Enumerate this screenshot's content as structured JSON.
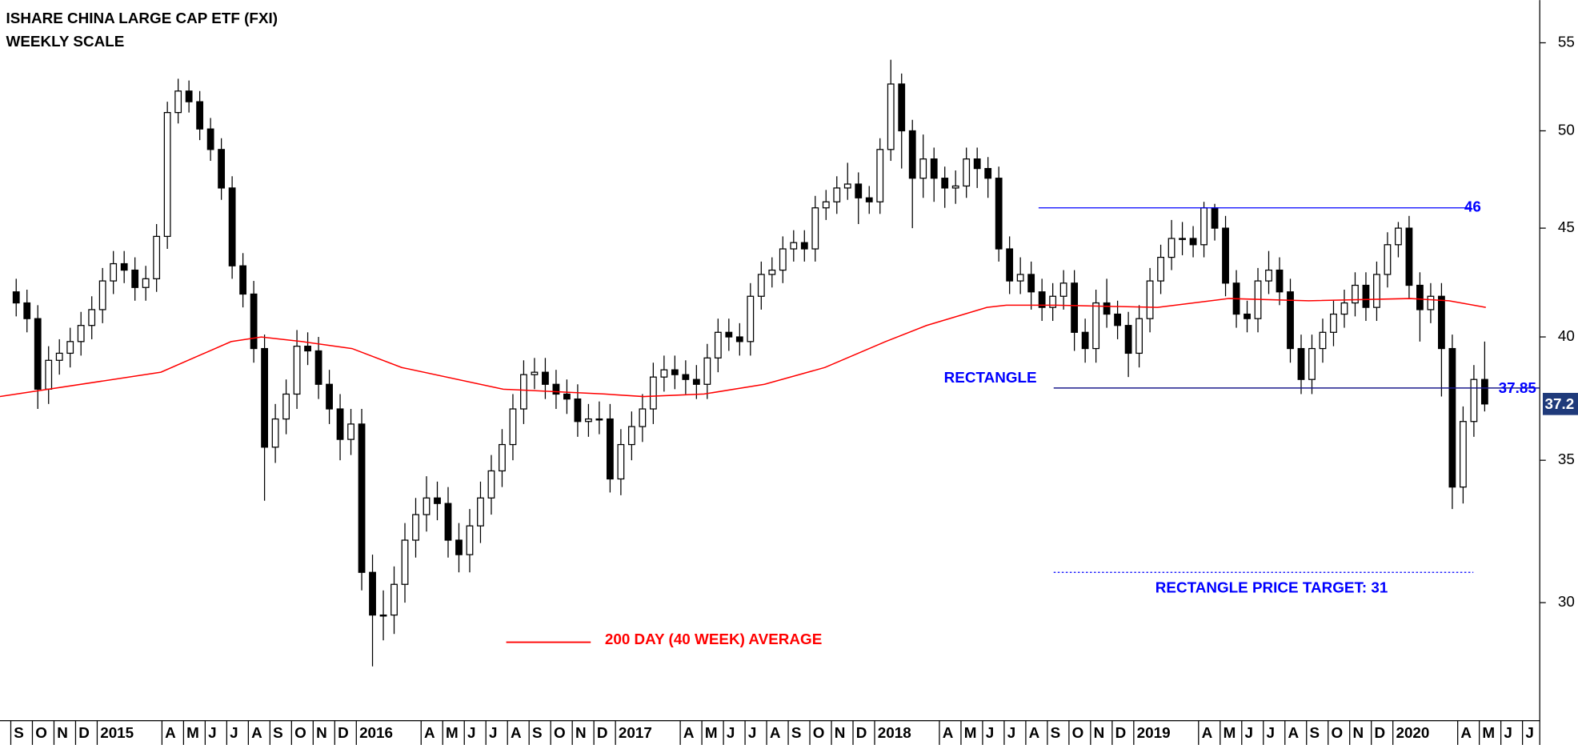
{
  "chart_data": {
    "type": "candlestick",
    "title": "ISHARE CHINA LARGE CAP ETF (FXI)",
    "subtitle": "WEEKLY SCALE",
    "log_scale": true,
    "ylim": [
      26.4,
      57.6
    ],
    "yticks": [
      30,
      35,
      40,
      45,
      50,
      55
    ],
    "xlim": [
      -0.5,
      70.8
    ],
    "xticks": [
      {
        "value": 0,
        "label": "S"
      },
      {
        "value": 1,
        "label": "O"
      },
      {
        "value": 2,
        "label": "N"
      },
      {
        "value": 3,
        "label": "D"
      },
      {
        "value": 4,
        "label": "2015"
      },
      {
        "value": 7,
        "label": "A"
      },
      {
        "value": 8,
        "label": "M"
      },
      {
        "value": 9,
        "label": "J"
      },
      {
        "value": 10,
        "label": "J"
      },
      {
        "value": 11,
        "label": "A"
      },
      {
        "value": 12,
        "label": "S"
      },
      {
        "value": 13,
        "label": "O"
      },
      {
        "value": 14,
        "label": "N"
      },
      {
        "value": 15,
        "label": "D"
      },
      {
        "value": 16,
        "label": "2016"
      },
      {
        "value": 19,
        "label": "A"
      },
      {
        "value": 20,
        "label": "M"
      },
      {
        "value": 21,
        "label": "J"
      },
      {
        "value": 22,
        "label": "J"
      },
      {
        "value": 23,
        "label": "A"
      },
      {
        "value": 24,
        "label": "S"
      },
      {
        "value": 25,
        "label": "O"
      },
      {
        "value": 26,
        "label": "N"
      },
      {
        "value": 27,
        "label": "D"
      },
      {
        "value": 28,
        "label": "2017"
      },
      {
        "value": 31,
        "label": "A"
      },
      {
        "value": 32,
        "label": "M"
      },
      {
        "value": 33,
        "label": "J"
      },
      {
        "value": 34,
        "label": "J"
      },
      {
        "value": 35,
        "label": "A"
      },
      {
        "value": 36,
        "label": "S"
      },
      {
        "value": 37,
        "label": "O"
      },
      {
        "value": 38,
        "label": "N"
      },
      {
        "value": 39,
        "label": "D"
      },
      {
        "value": 40,
        "label": "2018"
      },
      {
        "value": 43,
        "label": "A"
      },
      {
        "value": 44,
        "label": "M"
      },
      {
        "value": 45,
        "label": "J"
      },
      {
        "value": 46,
        "label": "J"
      },
      {
        "value": 47,
        "label": "A"
      },
      {
        "value": 48,
        "label": "S"
      },
      {
        "value": 49,
        "label": "O"
      },
      {
        "value": 50,
        "label": "N"
      },
      {
        "value": 51,
        "label": "D"
      },
      {
        "value": 52,
        "label": "2019"
      },
      {
        "value": 55,
        "label": "A"
      },
      {
        "value": 56,
        "label": "M"
      },
      {
        "value": 57,
        "label": "J"
      },
      {
        "value": 58,
        "label": "J"
      },
      {
        "value": 59,
        "label": "A"
      },
      {
        "value": 60,
        "label": "S"
      },
      {
        "value": 61,
        "label": "O"
      },
      {
        "value": 62,
        "label": "N"
      },
      {
        "value": 63,
        "label": "D"
      },
      {
        "value": 64,
        "label": "2020"
      },
      {
        "value": 67,
        "label": "A"
      },
      {
        "value": 68,
        "label": "M"
      },
      {
        "value": 69,
        "label": "J"
      },
      {
        "value": 70,
        "label": "J"
      }
    ],
    "candles": {
      "up_color": "#ffffff",
      "down_color": "#000000",
      "x": [
        0.25,
        0.75,
        1.25,
        1.75,
        2.25,
        2.75,
        3.25,
        3.75,
        4.25,
        4.75,
        5.25,
        5.75,
        6.25,
        6.75,
        7.25,
        7.75,
        8.25,
        8.75,
        9.25,
        9.75,
        10.25,
        10.75,
        11.25,
        11.75,
        12.25,
        12.75,
        13.25,
        13.75,
        14.25,
        14.75,
        15.25,
        15.75,
        16.25,
        16.75,
        17.25,
        17.75,
        18.25,
        18.75,
        19.25,
        19.75,
        20.25,
        20.75,
        21.25,
        21.75,
        22.25,
        22.75,
        23.25,
        23.75,
        24.25,
        24.75,
        25.25,
        25.75,
        26.25,
        26.75,
        27.25,
        27.75,
        28.25,
        28.75,
        29.25,
        29.75,
        30.25,
        30.75,
        31.25,
        31.75,
        32.25,
        32.75,
        33.25,
        33.75,
        34.25,
        34.75,
        35.25,
        35.75,
        36.25,
        36.75,
        37.25,
        37.75,
        38.25,
        38.75,
        39.25,
        39.75,
        40.25,
        40.75,
        41.25,
        41.75,
        42.25,
        42.75,
        43.25,
        43.75,
        44.25,
        44.75,
        45.25,
        45.75,
        46.25,
        46.75,
        47.25,
        47.75,
        48.25,
        48.75,
        49.25,
        49.75,
        50.25,
        50.75,
        51.25,
        51.75,
        52.25,
        52.75,
        53.25,
        53.75,
        54.25,
        54.75,
        55.25,
        55.75,
        56.25,
        56.75,
        57.25,
        57.75,
        58.25,
        58.75,
        59.25,
        59.75,
        60.25,
        60.75,
        61.25,
        61.75,
        62.25,
        62.75,
        63.25,
        63.75,
        64.25,
        64.75,
        65.25,
        65.75,
        66.25,
        66.75,
        67.25,
        67.75,
        68.25
      ],
      "open": [
        42.0,
        41.5,
        40.8,
        37.8,
        39.0,
        39.3,
        39.8,
        40.5,
        41.2,
        42.5,
        43.3,
        43.0,
        42.2,
        42.6,
        44.6,
        51.0,
        52.2,
        51.6,
        50.1,
        49.0,
        47.0,
        43.2,
        41.9,
        39.5,
        35.5,
        36.6,
        37.6,
        39.6,
        39.4,
        38.0,
        37.0,
        35.8,
        36.4,
        31.0,
        29.6,
        29.6,
        30.6,
        32.1,
        33.0,
        33.6,
        33.4,
        32.1,
        31.6,
        32.6,
        33.6,
        34.6,
        35.6,
        37.0,
        38.4,
        38.5,
        38.0,
        37.6,
        37.4,
        36.5,
        36.6,
        36.6,
        34.3,
        35.6,
        36.3,
        37.0,
        38.3,
        38.6,
        38.4,
        38.2,
        38.0,
        39.1,
        40.2,
        40.0,
        39.8,
        41.8,
        42.8,
        43.0,
        44.0,
        44.3,
        44.0,
        46.0,
        46.3,
        47.0,
        47.2,
        46.5,
        46.3,
        49.0,
        52.6,
        50.0,
        47.5,
        48.5,
        47.5,
        47.0,
        47.1,
        48.5,
        48.0,
        47.5,
        44.0,
        42.5,
        42.8,
        42.0,
        41.3,
        41.8,
        42.4,
        40.2,
        39.5,
        41.5,
        41.0,
        40.5,
        39.3,
        40.8,
        42.5,
        43.6,
        44.5,
        44.5,
        44.2,
        46.0,
        45.0,
        42.4,
        41.0,
        40.8,
        42.5,
        43.0,
        42.0,
        39.5,
        38.2,
        39.5,
        40.2,
        41.0,
        41.5,
        42.3,
        41.3,
        42.8,
        44.2,
        45.0,
        42.3,
        41.2,
        41.8,
        39.5,
        34.0,
        36.5,
        38.2
      ],
      "high": [
        42.6,
        42.1,
        41.4,
        39.6,
        39.9,
        40.4,
        41.1,
        41.8,
        43.1,
        43.9,
        43.9,
        43.6,
        43.2,
        45.2,
        51.6,
        52.9,
        52.8,
        52.2,
        50.7,
        49.6,
        47.6,
        43.8,
        42.5,
        40.1,
        37.2,
        38.2,
        40.3,
        40.2,
        40.0,
        38.6,
        37.6,
        37.0,
        37.0,
        31.6,
        30.4,
        31.2,
        32.7,
        33.6,
        34.4,
        34.2,
        34.0,
        32.7,
        33.2,
        34.2,
        35.2,
        36.2,
        37.6,
        39.0,
        39.1,
        39.1,
        38.6,
        38.2,
        38.0,
        37.2,
        37.3,
        37.2,
        36.2,
        36.9,
        37.6,
        38.9,
        39.2,
        39.2,
        39.0,
        38.8,
        39.7,
        40.8,
        40.8,
        40.6,
        42.4,
        43.4,
        43.6,
        44.6,
        44.9,
        44.9,
        46.6,
        46.9,
        47.6,
        48.3,
        47.8,
        47.1,
        49.6,
        54.0,
        53.2,
        50.6,
        49.8,
        49.1,
        48.1,
        47.9,
        49.1,
        49.1,
        48.6,
        48.1,
        44.6,
        43.6,
        43.4,
        42.6,
        42.4,
        43.0,
        43.0,
        40.8,
        42.1,
        42.6,
        41.6,
        41.1,
        41.4,
        43.1,
        44.2,
        45.4,
        45.3,
        45.1,
        46.3,
        46.2,
        45.6,
        43.0,
        41.6,
        43.1,
        43.9,
        43.6,
        42.6,
        40.1,
        40.1,
        40.8,
        41.6,
        42.1,
        42.9,
        42.9,
        43.4,
        44.8,
        45.3,
        45.6,
        42.9,
        42.4,
        42.4,
        40.1,
        37.1,
        38.8,
        39.8
      ],
      "low": [
        40.9,
        40.2,
        37.0,
        37.2,
        38.4,
        38.7,
        39.2,
        39.9,
        40.6,
        41.9,
        42.4,
        41.6,
        41.6,
        42.0,
        44.0,
        50.4,
        51.0,
        49.5,
        48.4,
        46.4,
        42.6,
        41.3,
        38.9,
        33.5,
        34.9,
        36.0,
        37.0,
        38.8,
        37.4,
        36.4,
        35.0,
        35.2,
        30.4,
        28.0,
        28.8,
        29.0,
        30.0,
        31.5,
        32.4,
        32.8,
        31.5,
        31.0,
        31.0,
        32.0,
        33.0,
        34.0,
        35.0,
        36.4,
        37.8,
        37.4,
        37.0,
        36.8,
        35.9,
        35.9,
        36.0,
        33.8,
        33.7,
        35.0,
        35.7,
        36.4,
        37.7,
        37.8,
        37.6,
        37.4,
        37.4,
        38.5,
        39.4,
        39.2,
        39.2,
        41.2,
        42.2,
        42.4,
        43.4,
        43.4,
        43.4,
        45.4,
        45.7,
        46.4,
        45.2,
        45.7,
        45.7,
        48.4,
        48.0,
        45.0,
        46.5,
        46.3,
        46.0,
        46.2,
        46.5,
        47.0,
        46.5,
        43.4,
        41.9,
        41.9,
        41.2,
        40.7,
        40.7,
        41.2,
        39.4,
        38.9,
        38.9,
        40.4,
        39.9,
        38.3,
        38.7,
        40.2,
        41.9,
        43.0,
        43.7,
        43.6,
        43.6,
        44.4,
        41.8,
        40.4,
        40.2,
        40.2,
        41.9,
        41.4,
        38.9,
        37.6,
        37.6,
        38.9,
        39.6,
        40.4,
        40.9,
        40.7,
        40.7,
        42.2,
        43.6,
        41.7,
        39.8,
        40.6,
        37.5,
        33.2,
        33.4,
        35.9,
        36.9
      ],
      "close": [
        41.5,
        40.8,
        37.8,
        39.0,
        39.3,
        39.8,
        40.5,
        41.2,
        42.5,
        43.3,
        43.0,
        42.2,
        42.6,
        44.6,
        51.0,
        52.2,
        51.6,
        50.1,
        49.0,
        47.0,
        43.2,
        41.9,
        39.5,
        35.5,
        36.6,
        37.6,
        39.6,
        39.4,
        38.0,
        37.0,
        35.8,
        36.4,
        31.0,
        29.6,
        29.6,
        30.6,
        32.1,
        33.0,
        33.6,
        33.4,
        32.1,
        31.6,
        32.6,
        33.6,
        34.6,
        35.6,
        37.0,
        38.4,
        38.5,
        38.0,
        37.6,
        37.4,
        36.5,
        36.6,
        36.6,
        34.3,
        35.6,
        36.3,
        37.0,
        38.3,
        38.6,
        38.4,
        38.2,
        38.0,
        39.1,
        40.2,
        40.0,
        39.8,
        41.8,
        42.8,
        43.0,
        44.0,
        44.3,
        44.0,
        46.0,
        46.3,
        47.0,
        47.2,
        46.5,
        46.3,
        49.0,
        52.6,
        50.0,
        47.5,
        48.5,
        47.5,
        47.0,
        47.1,
        48.5,
        48.0,
        47.5,
        44.0,
        42.5,
        42.8,
        42.0,
        41.3,
        41.8,
        42.4,
        40.2,
        39.5,
        41.5,
        41.0,
        40.5,
        39.3,
        40.8,
        42.5,
        43.6,
        44.5,
        44.5,
        44.2,
        46.0,
        45.0,
        42.4,
        41.0,
        40.8,
        42.5,
        43.0,
        42.0,
        39.5,
        38.2,
        39.5,
        40.2,
        41.0,
        41.5,
        42.3,
        41.3,
        42.8,
        44.2,
        45.0,
        42.3,
        41.2,
        41.8,
        39.5,
        34.0,
        36.5,
        38.2,
        37.2
      ]
    },
    "moving_average": {
      "name": "200 DAY (40 WEEK) AVERAGE",
      "color": "#ff0000",
      "x": [
        -0.5,
        6.95,
        10.2,
        11.6,
        13.5,
        15.8,
        18.1,
        22.8,
        27.5,
        29.3,
        32.1,
        34.9,
        37.7,
        40.5,
        42.4,
        45.2,
        46.1,
        48.4,
        53.1,
        56.4,
        60.1,
        64.8,
        66.6,
        68.3
      ],
      "values": [
        37.5,
        38.5,
        39.8,
        40.0,
        39.8,
        39.5,
        38.7,
        37.8,
        37.6,
        37.5,
        37.6,
        38.0,
        38.7,
        39.8,
        40.5,
        41.3,
        41.4,
        41.4,
        41.3,
        41.7,
        41.6,
        41.7,
        41.6,
        41.3
      ]
    },
    "level_color": "#0000ff",
    "resistance": 46,
    "support": 37.85,
    "annotation": "RECTANGLE",
    "target": {
      "value": 31,
      "label": "RECTANGLE PRICE TARGET: 31"
    },
    "last_price": 37.2,
    "last_price_color": "#1f3a7a"
  }
}
